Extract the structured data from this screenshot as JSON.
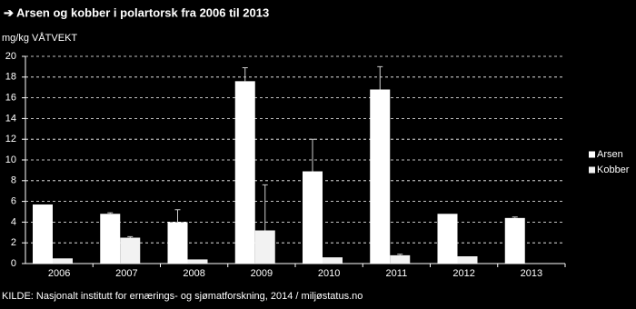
{
  "chart_data": {
    "type": "bar",
    "title": "➔ Arsen og kobber i polartorsk fra 2006 til 2013",
    "y_label": "mg/kg VÅTVEKT",
    "source": "KILDE: Nasjonalt institutt for ernærings- og sjømatforskning, 2014 / miljøstatus.no",
    "categories": [
      "2006",
      "2007",
      "2008",
      "2009",
      "2010",
      "2011",
      "2012",
      "2013"
    ],
    "series": [
      {
        "name": "Arsen",
        "color": "#ffffff",
        "values": [
          5.7,
          4.8,
          4.0,
          17.6,
          8.9,
          16.8,
          4.8,
          4.4
        ],
        "errors": [
          null,
          0.1,
          1.2,
          1.3,
          3.1,
          2.2,
          null,
          0.1
        ]
      },
      {
        "name": "Kobber",
        "color": "#f2f2f2",
        "values": [
          0.5,
          2.5,
          0.4,
          3.2,
          0.6,
          0.8,
          0.7,
          null
        ],
        "errors": [
          null,
          0.1,
          null,
          4.4,
          null,
          0.1,
          null,
          null
        ]
      }
    ],
    "ylim": [
      0,
      20
    ],
    "yticks": [
      0,
      2,
      4,
      6,
      8,
      10,
      12,
      14,
      16,
      18,
      20
    ],
    "grid": true,
    "legend": "right"
  }
}
